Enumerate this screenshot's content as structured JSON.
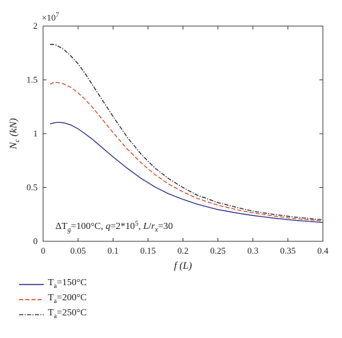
{
  "chart_data": {
    "type": "line",
    "title": "",
    "xlabel": "f(L)",
    "ylabel": "N_c(kN)",
    "y_multiplier_label": "×10",
    "y_multiplier_exp": "7",
    "xlim": [
      0,
      0.4
    ],
    "ylim": [
      0,
      2
    ],
    "x_ticks": [
      0,
      0.05,
      0.1,
      0.15,
      0.2,
      0.25,
      0.3,
      0.35,
      0.4
    ],
    "x_tick_labels": [
      "0",
      "0.05",
      "0.1",
      "0.15",
      "0.2",
      "0.25",
      "0.3",
      "0.35",
      "0.4"
    ],
    "y_ticks": [
      0,
      0.5,
      1,
      1.5,
      2
    ],
    "y_tick_labels": [
      "0",
      "0.5",
      "1",
      "1.5",
      "2"
    ],
    "grid": false,
    "legend_position": "below",
    "annotation": "ΔT_g=100°C, q=2*10^5, L/r_x=30",
    "x": [
      0.01,
      0.015,
      0.02,
      0.025,
      0.03,
      0.04,
      0.05,
      0.06,
      0.07,
      0.08,
      0.09,
      0.1,
      0.12,
      0.14,
      0.16,
      0.18,
      0.2,
      0.22,
      0.25,
      0.28,
      0.3,
      0.33,
      0.36,
      0.4
    ],
    "series": [
      {
        "name": "T_a=150°C",
        "color": "#2b2b8c",
        "dash": "solid",
        "values": [
          1.09,
          1.1,
          1.105,
          1.105,
          1.1,
          1.08,
          1.045,
          1.0,
          0.95,
          0.895,
          0.84,
          0.785,
          0.68,
          0.585,
          0.505,
          0.44,
          0.39,
          0.345,
          0.295,
          0.26,
          0.24,
          0.215,
          0.195,
          0.175
        ]
      },
      {
        "name": "T_a=200°C",
        "color": "#d9441e",
        "dash": "dashed",
        "values": [
          1.46,
          1.475,
          1.475,
          1.47,
          1.46,
          1.43,
          1.38,
          1.32,
          1.25,
          1.17,
          1.09,
          1.01,
          0.86,
          0.73,
          0.62,
          0.53,
          0.46,
          0.4,
          0.335,
          0.29,
          0.265,
          0.235,
          0.21,
          0.19
        ]
      },
      {
        "name": "T_a=250°C",
        "color": "#222222",
        "dash": "dashdot",
        "values": [
          1.83,
          1.83,
          1.82,
          1.8,
          1.78,
          1.72,
          1.65,
          1.56,
          1.46,
          1.36,
          1.26,
          1.16,
          0.97,
          0.81,
          0.68,
          0.58,
          0.5,
          0.43,
          0.36,
          0.31,
          0.28,
          0.25,
          0.225,
          0.2
        ]
      }
    ]
  },
  "legend": {
    "items": [
      {
        "sub": "a",
        "label": "=150°C"
      },
      {
        "sub": "a",
        "label": "=200°C"
      },
      {
        "sub": "a",
        "label": "=250°C"
      }
    ]
  }
}
